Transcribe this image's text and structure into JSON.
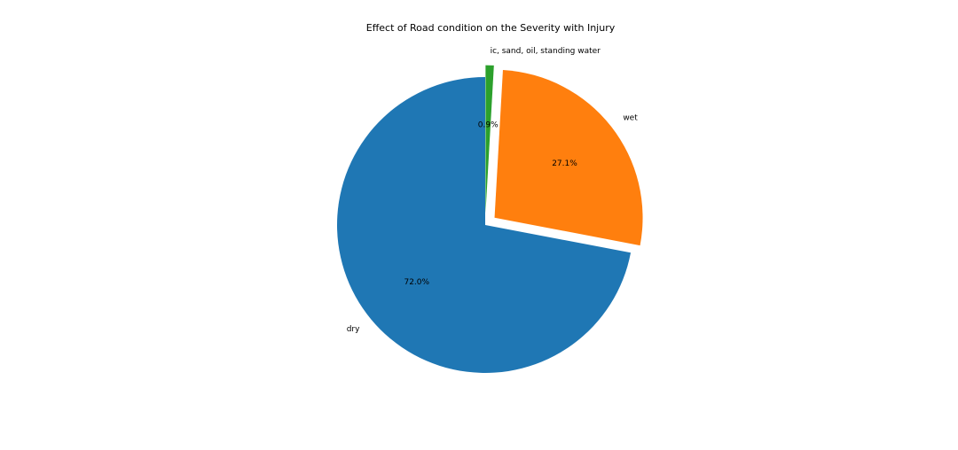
{
  "chart_data": {
    "type": "pie",
    "title": "Effect of Road condition on the Severity with Injury",
    "labels": [
      "dry",
      "wet",
      "ic, sand, oil, standing water"
    ],
    "values": [
      72.0,
      27.1,
      0.9
    ],
    "percent_labels": [
      "72.0%",
      "27.1%",
      "0.9%"
    ],
    "colors": [
      "#1f77b4",
      "#ff7f0e",
      "#2ca02c"
    ],
    "exploded": [
      false,
      true,
      true
    ],
    "start_angle": "90 degrees (12 o'clock)",
    "direction": "counterclockwise"
  }
}
